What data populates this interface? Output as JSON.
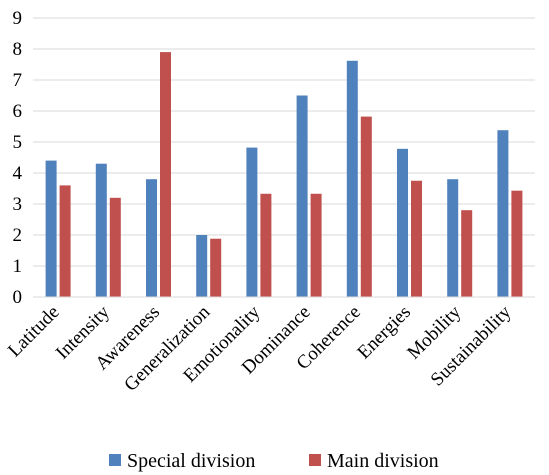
{
  "chart_data": {
    "type": "bar",
    "title": "",
    "xlabel": "",
    "ylabel": "",
    "ylim": [
      0,
      9
    ],
    "yticks": [
      "0",
      "1",
      "2",
      "3",
      "4",
      "5",
      "6",
      "7",
      "8",
      "9"
    ],
    "grid": true,
    "legend_position": "bottom",
    "categories": [
      "Latitude",
      "Intensity",
      "Awareness",
      "Generalization",
      "Emotionality",
      "Dominance",
      "Coherence",
      "Energies",
      "Mobility",
      "Sustainability"
    ],
    "series": [
      {
        "name": "Special division",
        "color": "#4F81BD",
        "values": [
          4.4,
          4.3,
          3.8,
          2.0,
          4.82,
          6.5,
          7.62,
          4.78,
          3.8,
          5.38
        ]
      },
      {
        "name": "Main division",
        "color": "#C0504D",
        "values": [
          3.6,
          3.2,
          7.9,
          1.88,
          3.33,
          3.33,
          5.82,
          3.75,
          2.8,
          3.43
        ]
      }
    ]
  }
}
